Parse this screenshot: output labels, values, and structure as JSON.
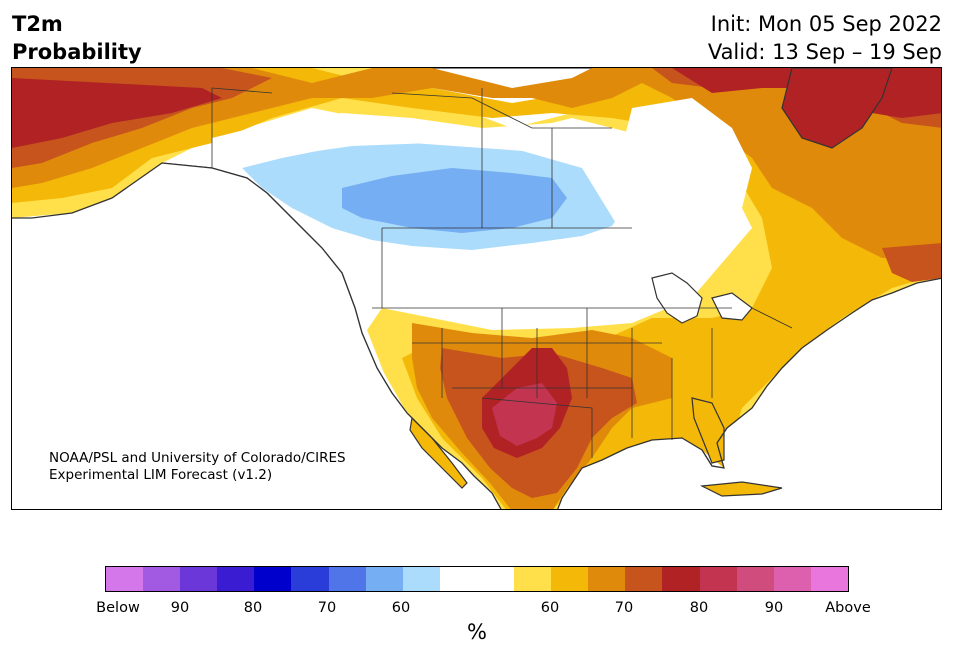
{
  "header": {
    "title_line1": "T2m",
    "title_line2": "Probability",
    "init_text": "Init: Mon 05 Sep 2022",
    "valid_text": "Valid: 13 Sep – 19 Sep"
  },
  "credit": {
    "line1": "NOAA/PSL and University of Colorado/CIRES",
    "line2": "Experimental LIM Forecast (v1.2)"
  },
  "legend": {
    "colors": [
      "#d477ea",
      "#a35ae2",
      "#6c37d9",
      "#3a1cd3",
      "#0000cc",
      "#2b3dd9",
      "#4f75e8",
      "#75aef3",
      "#acdcfb",
      "#ffffff",
      "#ffffff",
      "#ffe04a",
      "#f4b808",
      "#e08a0c",
      "#c7541c",
      "#b12224",
      "#c23450",
      "#d04c7c",
      "#dc60ad",
      "#e876dc"
    ],
    "tick_labels": [
      "Below",
      "90",
      "80",
      "70",
      "60",
      "60",
      "70",
      "80",
      "90",
      "Above"
    ],
    "unit": "%"
  },
  "map_colors": {
    "ocean": "#ffffff",
    "land_base": "#ffffff",
    "above_50_60": "#ffe04a",
    "above_60_70": "#f4b808",
    "above_70_80": "#e08a0c",
    "above_80": "#c7541c",
    "above_85": "#b12224",
    "above_90": "#c23450",
    "below_50_60": "#acdcfb",
    "below_60_70": "#75aef3",
    "coastline": "#333333"
  }
}
